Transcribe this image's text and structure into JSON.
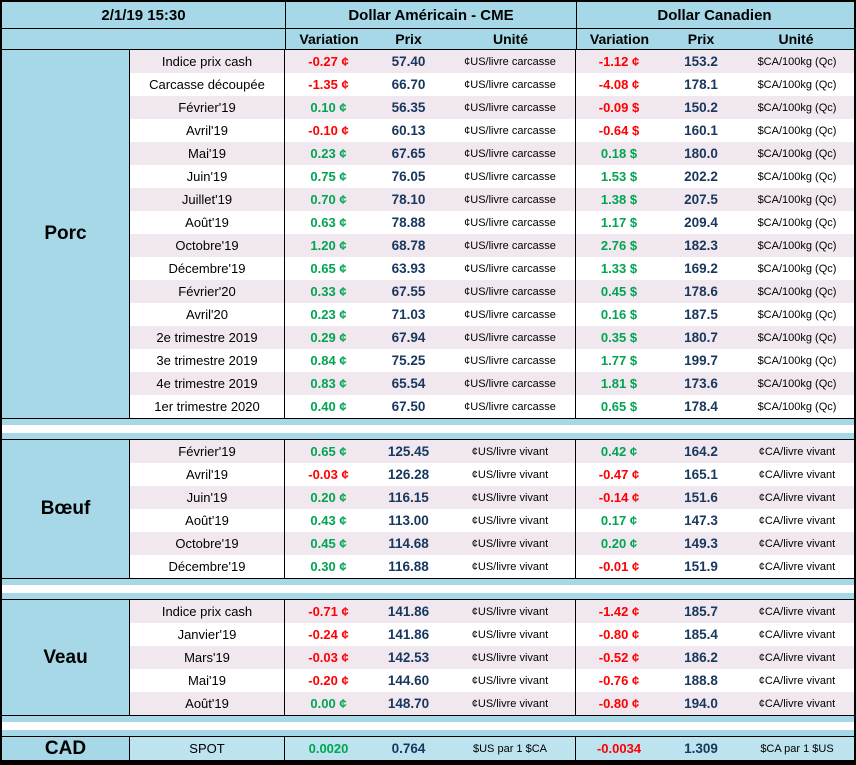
{
  "header": {
    "timestamp": "2/1/19 15:30",
    "usd_title": "Dollar Américain - CME",
    "cad_title": "Dollar Canadien",
    "col_variation": "Variation",
    "col_prix": "Prix",
    "col_unite": "Unité"
  },
  "colors": {
    "page_blue": "#a6d8e8",
    "row_tint": "#f1e7ef",
    "positive_green": "#00a551",
    "negative_red": "#fe0000",
    "price_navy": "#17375d",
    "border_black": "#000000"
  },
  "sections": [
    {
      "name": "Porc",
      "rows": [
        {
          "label": "Indice prix cash",
          "us_var": "-0.27 ¢",
          "us_prix": "57.40",
          "us_unit": "¢US/livre carcasse",
          "ca_var": "-1.12 ¢",
          "ca_prix": "153.2",
          "ca_unit": "$CA/100kg (Qc)"
        },
        {
          "label": "Carcasse découpée",
          "us_var": "-1.35 ¢",
          "us_prix": "66.70",
          "us_unit": "¢US/livre carcasse",
          "ca_var": "-4.08 ¢",
          "ca_prix": "178.1",
          "ca_unit": "$CA/100kg (Qc)"
        },
        {
          "label": "Février'19",
          "us_var": "0.10 ¢",
          "us_prix": "56.35",
          "us_unit": "¢US/livre carcasse",
          "ca_var": "-0.09 $",
          "ca_prix": "150.2",
          "ca_unit": "$CA/100kg (Qc)"
        },
        {
          "label": "Avril'19",
          "us_var": "-0.10 ¢",
          "us_prix": "60.13",
          "us_unit": "¢US/livre carcasse",
          "ca_var": "-0.64 $",
          "ca_prix": "160.1",
          "ca_unit": "$CA/100kg (Qc)"
        },
        {
          "label": "Mai'19",
          "us_var": "0.23 ¢",
          "us_prix": "67.65",
          "us_unit": "¢US/livre carcasse",
          "ca_var": "0.18 $",
          "ca_prix": "180.0",
          "ca_unit": "$CA/100kg (Qc)"
        },
        {
          "label": "Juin'19",
          "us_var": "0.75 ¢",
          "us_prix": "76.05",
          "us_unit": "¢US/livre carcasse",
          "ca_var": "1.53 $",
          "ca_prix": "202.2",
          "ca_unit": "$CA/100kg (Qc)"
        },
        {
          "label": "Juillet'19",
          "us_var": "0.70 ¢",
          "us_prix": "78.10",
          "us_unit": "¢US/livre carcasse",
          "ca_var": "1.38 $",
          "ca_prix": "207.5",
          "ca_unit": "$CA/100kg (Qc)"
        },
        {
          "label": "Août'19",
          "us_var": "0.63 ¢",
          "us_prix": "78.88",
          "us_unit": "¢US/livre carcasse",
          "ca_var": "1.17 $",
          "ca_prix": "209.4",
          "ca_unit": "$CA/100kg (Qc)"
        },
        {
          "label": "Octobre'19",
          "us_var": "1.20 ¢",
          "us_prix": "68.78",
          "us_unit": "¢US/livre carcasse",
          "ca_var": "2.76 $",
          "ca_prix": "182.3",
          "ca_unit": "$CA/100kg (Qc)"
        },
        {
          "label": "Décembre'19",
          "us_var": "0.65 ¢",
          "us_prix": "63.93",
          "us_unit": "¢US/livre carcasse",
          "ca_var": "1.33 $",
          "ca_prix": "169.2",
          "ca_unit": "$CA/100kg (Qc)"
        },
        {
          "label": "Février'20",
          "us_var": "0.33 ¢",
          "us_prix": "67.55",
          "us_unit": "¢US/livre carcasse",
          "ca_var": "0.45 $",
          "ca_prix": "178.6",
          "ca_unit": "$CA/100kg (Qc)"
        },
        {
          "label": "Avril'20",
          "us_var": "0.23 ¢",
          "us_prix": "71.03",
          "us_unit": "¢US/livre carcasse",
          "ca_var": "0.16 $",
          "ca_prix": "187.5",
          "ca_unit": "$CA/100kg (Qc)"
        },
        {
          "label": "2e trimestre 2019",
          "us_var": "0.29 ¢",
          "us_prix": "67.94",
          "us_unit": "¢US/livre carcasse",
          "ca_var": "0.35 $",
          "ca_prix": "180.7",
          "ca_unit": "$CA/100kg (Qc)"
        },
        {
          "label": "3e trimestre 2019",
          "us_var": "0.84 ¢",
          "us_prix": "75.25",
          "us_unit": "¢US/livre carcasse",
          "ca_var": "1.77 $",
          "ca_prix": "199.7",
          "ca_unit": "$CA/100kg (Qc)"
        },
        {
          "label": "4e trimestre 2019",
          "us_var": "0.83 ¢",
          "us_prix": "65.54",
          "us_unit": "¢US/livre carcasse",
          "ca_var": "1.81 $",
          "ca_prix": "173.6",
          "ca_unit": "$CA/100kg (Qc)"
        },
        {
          "label": "1er trimestre 2020",
          "us_var": "0.40 ¢",
          "us_prix": "67.50",
          "us_unit": "¢US/livre carcasse",
          "ca_var": "0.65 $",
          "ca_prix": "178.4",
          "ca_unit": "$CA/100kg (Qc)"
        }
      ]
    },
    {
      "name": "Bœuf",
      "rows": [
        {
          "label": "Février'19",
          "us_var": "0.65 ¢",
          "us_prix": "125.45",
          "us_unit": "¢US/livre vivant",
          "ca_var": "0.42 ¢",
          "ca_prix": "164.2",
          "ca_unit": "¢CA/livre vivant"
        },
        {
          "label": "Avril'19",
          "us_var": "-0.03 ¢",
          "us_prix": "126.28",
          "us_unit": "¢US/livre vivant",
          "ca_var": "-0.47 ¢",
          "ca_prix": "165.1",
          "ca_unit": "¢CA/livre vivant"
        },
        {
          "label": "Juin'19",
          "us_var": "0.20 ¢",
          "us_prix": "116.15",
          "us_unit": "¢US/livre vivant",
          "ca_var": "-0.14 ¢",
          "ca_prix": "151.6",
          "ca_unit": "¢CA/livre vivant"
        },
        {
          "label": "Août'19",
          "us_var": "0.43 ¢",
          "us_prix": "113.00",
          "us_unit": "¢US/livre vivant",
          "ca_var": "0.17 ¢",
          "ca_prix": "147.3",
          "ca_unit": "¢CA/livre vivant"
        },
        {
          "label": "Octobre'19",
          "us_var": "0.45 ¢",
          "us_prix": "114.68",
          "us_unit": "¢US/livre vivant",
          "ca_var": "0.20 ¢",
          "ca_prix": "149.3",
          "ca_unit": "¢CA/livre vivant"
        },
        {
          "label": "Décembre'19",
          "us_var": "0.30 ¢",
          "us_prix": "116.88",
          "us_unit": "¢US/livre vivant",
          "ca_var": "-0.01 ¢",
          "ca_prix": "151.9",
          "ca_unit": "¢CA/livre vivant"
        }
      ]
    },
    {
      "name": "Veau",
      "rows": [
        {
          "label": "Indice prix cash",
          "us_var": "-0.71 ¢",
          "us_prix": "141.86",
          "us_unit": "¢US/livre vivant",
          "ca_var": "-1.42 ¢",
          "ca_prix": "185.7",
          "ca_unit": "¢CA/livre vivant"
        },
        {
          "label": "Janvier'19",
          "us_var": "-0.24 ¢",
          "us_prix": "141.86",
          "us_unit": "¢US/livre vivant",
          "ca_var": "-0.80 ¢",
          "ca_prix": "185.4",
          "ca_unit": "¢CA/livre vivant"
        },
        {
          "label": "Mars'19",
          "us_var": "-0.03 ¢",
          "us_prix": "142.53",
          "us_unit": "¢US/livre vivant",
          "ca_var": "-0.52 ¢",
          "ca_prix": "186.2",
          "ca_unit": "¢CA/livre vivant"
        },
        {
          "label": "Mai'19",
          "us_var": "-0.20 ¢",
          "us_prix": "144.60",
          "us_unit": "¢US/livre vivant",
          "ca_var": "-0.76 ¢",
          "ca_prix": "188.8",
          "ca_unit": "¢CA/livre vivant"
        },
        {
          "label": "Août'19",
          "us_var": "0.00 ¢",
          "us_prix": "148.70",
          "us_unit": "¢US/livre vivant",
          "ca_var": "-0.80 ¢",
          "ca_prix": "194.0",
          "ca_unit": "¢CA/livre vivant"
        }
      ]
    },
    {
      "name": "CAD",
      "rows": [
        {
          "label": "SPOT",
          "us_var": "0.0020",
          "us_prix": "0.764",
          "us_unit": "$US par 1 $CA",
          "ca_var": "-0.0034",
          "ca_prix": "1.309",
          "ca_unit": "$CA par 1 $US"
        }
      ]
    }
  ]
}
